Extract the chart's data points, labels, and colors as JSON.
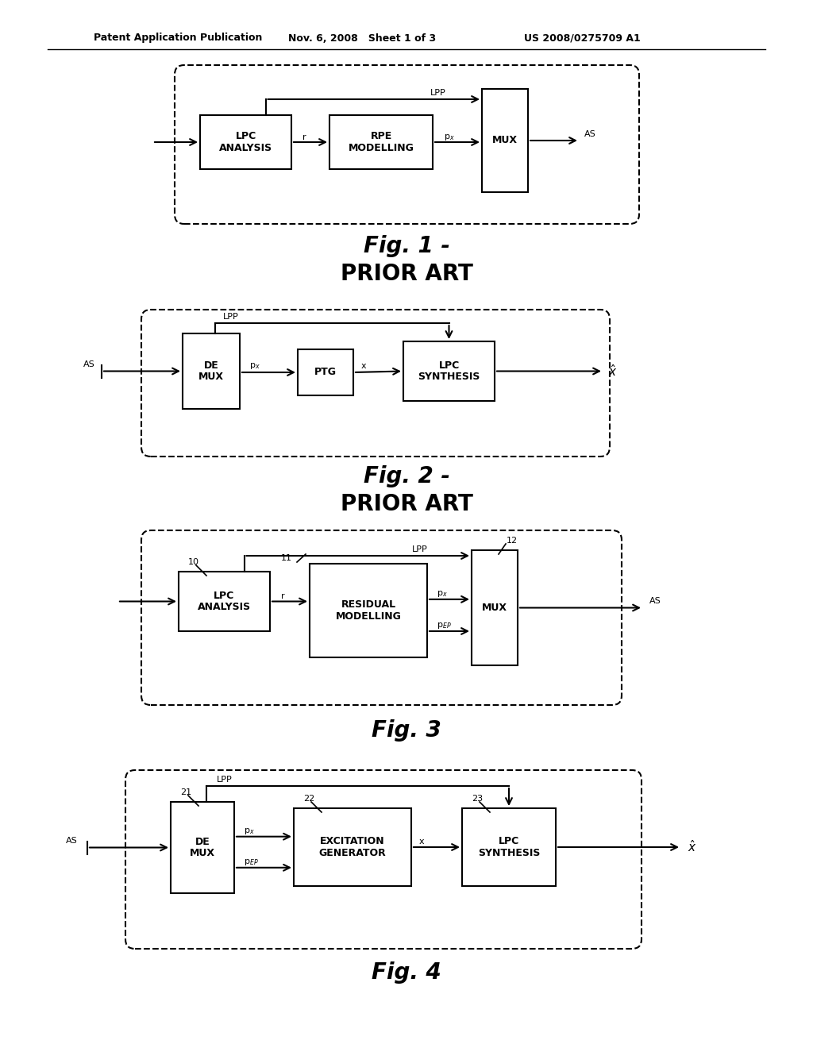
{
  "bg_color": "#ffffff",
  "header_left": "Patent Application Publication",
  "header_mid": "Nov. 6, 2008   Sheet 1 of 3",
  "header_right": "US 2008/0275709 A1"
}
